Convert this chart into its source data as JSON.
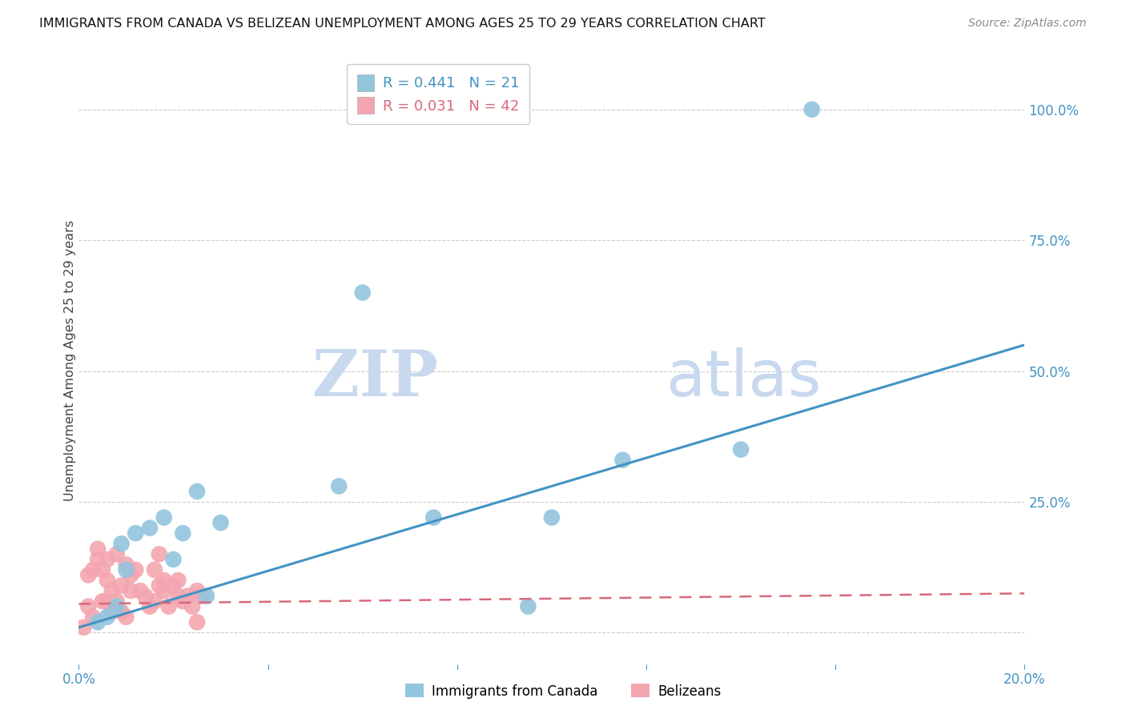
{
  "title": "IMMIGRANTS FROM CANADA VS BELIZEAN UNEMPLOYMENT AMONG AGES 25 TO 29 YEARS CORRELATION CHART",
  "source": "Source: ZipAtlas.com",
  "ylabel": "Unemployment Among Ages 25 to 29 years",
  "right_yticks": [
    0.0,
    0.25,
    0.5,
    0.75,
    1.0
  ],
  "right_yticklabels": [
    "",
    "25.0%",
    "50.0%",
    "75.0%",
    "100.0%"
  ],
  "legend_r1": "R = 0.441",
  "legend_n1": "N = 21",
  "legend_r2": "R = 0.031",
  "legend_n2": "N = 42",
  "blue_color": "#92c5de",
  "pink_color": "#f4a6b0",
  "trend_blue": "#4393c3",
  "trend_pink": "#d6697a",
  "canada_scatter_x": [
    0.004,
    0.006,
    0.008,
    0.009,
    0.01,
    0.012,
    0.015,
    0.018,
    0.02,
    0.022,
    0.025,
    0.027,
    0.03,
    0.055,
    0.06,
    0.075,
    0.095,
    0.1,
    0.115,
    0.14,
    0.155
  ],
  "canada_scatter_y": [
    0.02,
    0.03,
    0.05,
    0.17,
    0.12,
    0.19,
    0.2,
    0.22,
    0.14,
    0.19,
    0.27,
    0.07,
    0.21,
    0.28,
    0.65,
    0.22,
    0.05,
    0.22,
    0.33,
    0.35,
    1.0
  ],
  "belize_scatter_x": [
    0.001,
    0.002,
    0.002,
    0.003,
    0.003,
    0.004,
    0.004,
    0.005,
    0.005,
    0.006,
    0.006,
    0.006,
    0.007,
    0.007,
    0.008,
    0.008,
    0.009,
    0.009,
    0.01,
    0.01,
    0.011,
    0.011,
    0.012,
    0.013,
    0.014,
    0.015,
    0.016,
    0.016,
    0.017,
    0.017,
    0.018,
    0.018,
    0.019,
    0.02,
    0.021,
    0.021,
    0.022,
    0.023,
    0.024,
    0.025,
    0.025,
    0.026
  ],
  "belize_scatter_y": [
    0.01,
    0.05,
    0.11,
    0.12,
    0.03,
    0.14,
    0.16,
    0.06,
    0.12,
    0.14,
    0.1,
    0.06,
    0.08,
    0.04,
    0.06,
    0.15,
    0.09,
    0.04,
    0.03,
    0.13,
    0.11,
    0.08,
    0.12,
    0.08,
    0.07,
    0.05,
    0.12,
    0.06,
    0.09,
    0.15,
    0.1,
    0.08,
    0.05,
    0.09,
    0.1,
    0.07,
    0.06,
    0.07,
    0.05,
    0.08,
    0.02,
    0.07
  ],
  "trend_blue_x0": 0.0,
  "trend_blue_y0": 0.01,
  "trend_blue_x1": 0.2,
  "trend_blue_y1": 0.55,
  "trend_pink_x0": 0.0,
  "trend_pink_y0": 0.055,
  "trend_pink_x1": 0.2,
  "trend_pink_y1": 0.075,
  "xlim": [
    0.0,
    0.2
  ],
  "ylim": [
    -0.06,
    1.1
  ],
  "background_color": "#ffffff",
  "watermark_zip": "ZIP",
  "watermark_atlas": "atlas",
  "watermark_color": "#c8d8ee"
}
